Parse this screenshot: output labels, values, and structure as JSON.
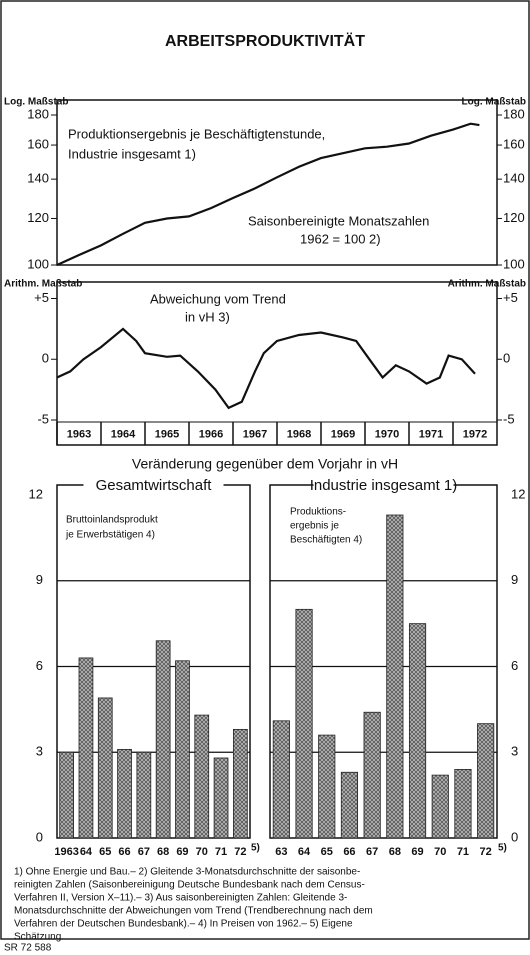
{
  "title": "ARBEITSPRODUKTIVITÄT",
  "subtitle": "Veränderung gegenüber dem Vorjahr in vH",
  "footnotes": [
    "1) Ohne Energie und Bau.– 2) Gleitende 3-Monatsdurchschnitte der saisonbe-",
    "reinigten Zahlen (Saisonbereinigung Deutsche Bundesbank nach dem Census-",
    "Verfahren II, Version X–11).– 3) Aus saisonbereinigten Zahlen: Gleitende 3-",
    "Monatsdurchschnitte der Abweichungen vom Trend (Trendberechnung nach dem",
    "Verfahren der Deutschen Bundesbank).– 4) In Preisen von 1962.– 5) Eigene",
    "Schätzung."
  ],
  "source": "SR 72 588",
  "chart_data": [
    {
      "type": "line",
      "log_scale": true,
      "left_axis_label": "Log. Maßstab",
      "right_axis_label": "Log. Maßstab",
      "annotations": [
        "Produktionsergebnis je Beschäftigtenstunde,",
        "Industrie insgesamt 1)",
        "Saisonbereinigte Monatszahlen",
        "1962 = 100 2)"
      ],
      "x": [
        1963.0,
        1963.5,
        1964.0,
        1964.5,
        1965.0,
        1965.5,
        1966.0,
        1966.5,
        1967.0,
        1967.5,
        1968.0,
        1968.5,
        1969.0,
        1969.5,
        1970.0,
        1970.5,
        1971.0,
        1971.5,
        1972.0,
        1972.4,
        1972.6
      ],
      "series": [
        {
          "color": "#111111",
          "values": [
            100,
            104,
            108,
            113,
            118,
            120,
            121,
            125,
            130,
            135,
            141,
            147,
            152,
            155,
            158,
            159,
            161,
            166,
            170,
            174,
            173
          ]
        }
      ],
      "xlim": [
        1963,
        1973
      ],
      "ylim": [
        100,
        180
      ],
      "yticks": [
        100,
        120,
        140,
        160,
        180
      ]
    },
    {
      "type": "line",
      "left_axis_label": "Arithm. Maßstab",
      "right_axis_label": "Arithm. Maßstab",
      "annotations": [
        "Abweichung vom Trend",
        "in vH 3)"
      ],
      "x": [
        1963.0,
        1963.3,
        1963.6,
        1964.0,
        1964.5,
        1964.8,
        1965.0,
        1965.5,
        1965.8,
        1966.2,
        1966.6,
        1966.9,
        1967.2,
        1967.5,
        1967.7,
        1968.0,
        1968.5,
        1969.0,
        1969.5,
        1969.8,
        1970.1,
        1970.4,
        1970.7,
        1971.0,
        1971.4,
        1971.7,
        1971.9,
        1972.2,
        1972.5
      ],
      "series": [
        {
          "color": "#111111",
          "values": [
            -1.5,
            -1.0,
            0,
            1,
            2.5,
            1.5,
            0.5,
            0.2,
            0.3,
            -1,
            -2.5,
            -4,
            -3.5,
            -1,
            0.5,
            1.5,
            2,
            2.2,
            1.8,
            1.5,
            0,
            -1.5,
            -0.5,
            -1,
            -2,
            -1.5,
            0.3,
            0,
            -1.2
          ]
        }
      ],
      "xlim": [
        1963,
        1973
      ],
      "xticks": [
        {
          "value": 1963,
          "label": "1963"
        },
        {
          "value": 1964,
          "label": "1964"
        },
        {
          "value": 1965,
          "label": "1965"
        },
        {
          "value": 1966,
          "label": "1966"
        },
        {
          "value": 1967,
          "label": "1967"
        },
        {
          "value": 1968,
          "label": "1968"
        },
        {
          "value": 1969,
          "label": "1969"
        },
        {
          "value": 1970,
          "label": "1970"
        },
        {
          "value": 1971,
          "label": "1971"
        },
        {
          "value": 1972,
          "label": "1972"
        }
      ],
      "ylim": [
        -5,
        5.7
      ],
      "yticks": [
        {
          "value": 5,
          "label": "+5"
        },
        0,
        {
          "value": -5,
          "label": "-5"
        }
      ]
    },
    {
      "type": "bar",
      "title": "Gesamtwirtschaft",
      "annotations": [
        "Bruttoinlandsprodukt",
        "je Erwerbstätigen 4)"
      ],
      "categories": [
        "1963",
        "64",
        "65",
        "66",
        "67",
        "68",
        "69",
        "70",
        "71",
        "72"
      ],
      "category_note": "5)",
      "values": [
        3.0,
        6.3,
        4.9,
        3.1,
        3.0,
        6.9,
        6.2,
        4.3,
        2.8,
        3.8
      ],
      "ylim": [
        0,
        12
      ],
      "yticks": [
        0,
        3,
        6,
        9,
        12
      ],
      "grid": true
    },
    {
      "type": "bar",
      "title": "Industrie insgesamt 1)",
      "annotations": [
        "Produktions-",
        "ergebnis je",
        "Beschäftigten 4)"
      ],
      "categories": [
        "63",
        "64",
        "65",
        "66",
        "67",
        "68",
        "69",
        "70",
        "71",
        "72"
      ],
      "category_note": "5)",
      "values": [
        4.1,
        8.0,
        3.6,
        2.3,
        4.4,
        11.3,
        7.5,
        2.2,
        2.4,
        4.0
      ],
      "ylim": [
        0,
        12
      ],
      "yticks": [
        0,
        3,
        6,
        9,
        12
      ],
      "grid": true
    }
  ]
}
